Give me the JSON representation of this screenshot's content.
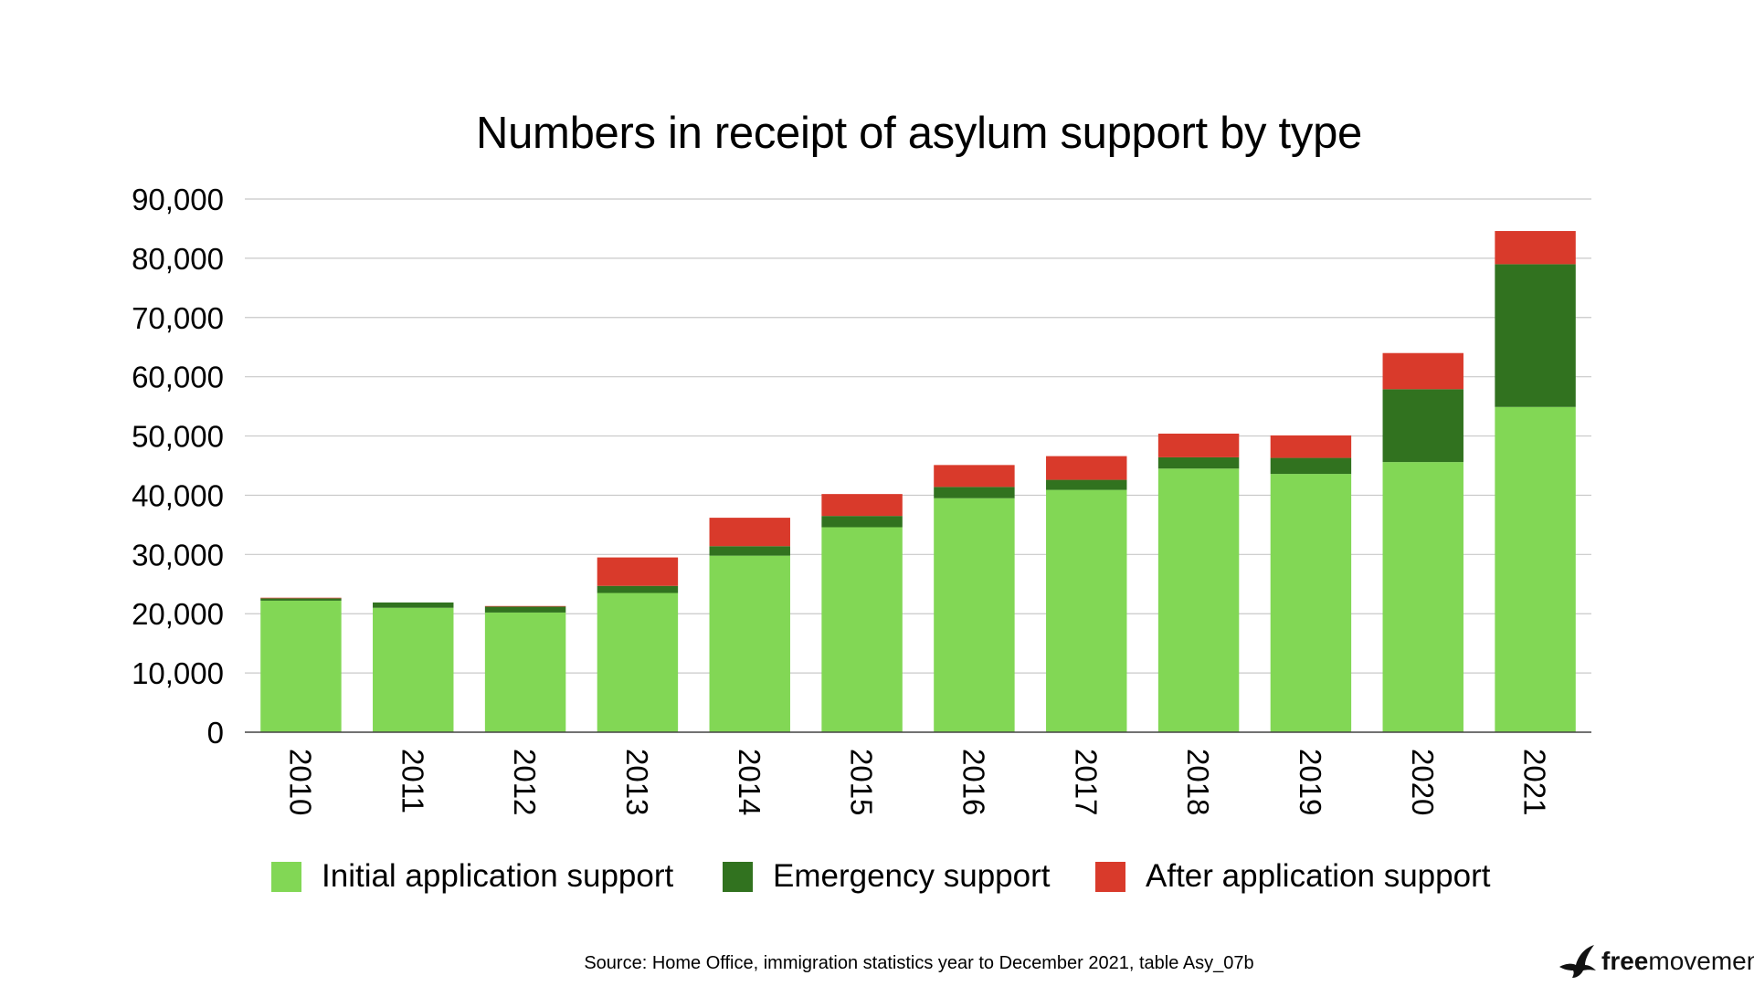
{
  "chart_data": {
    "type": "bar",
    "stacked": true,
    "title": "Numbers in receipt of asylum support by type",
    "xlabel": "",
    "ylabel": "",
    "categories": [
      "2010",
      "2011",
      "2012",
      "2013",
      "2014",
      "2015",
      "2016",
      "2017",
      "2018",
      "2019",
      "2020",
      "2021"
    ],
    "series": [
      {
        "name": "Initial application support",
        "color": "#82d755",
        "values": [
          22200,
          21000,
          20200,
          23500,
          29800,
          34600,
          39500,
          40900,
          44500,
          43600,
          45600,
          54900
        ]
      },
      {
        "name": "Emergency support",
        "color": "#31721f",
        "values": [
          400,
          900,
          1000,
          1200,
          1600,
          1900,
          1900,
          1700,
          1900,
          2700,
          12300,
          24100
        ]
      },
      {
        "name": "After application support",
        "color": "#d93a2b",
        "values": [
          100,
          0,
          100,
          4800,
          4800,
          3700,
          3700,
          4000,
          4000,
          3800,
          6100,
          5600
        ]
      }
    ],
    "ylim": [
      0,
      90000
    ],
    "yticks": [
      0,
      10000,
      20000,
      30000,
      40000,
      50000,
      60000,
      70000,
      80000,
      90000
    ],
    "ytick_labels": [
      "0",
      "10,000",
      "20,000",
      "30,000",
      "40,000",
      "50,000",
      "60,000",
      "70,000",
      "80,000",
      "90,000"
    ],
    "grid": true,
    "legend_position": "bottom",
    "source": "Source: Home Office, immigration statistics year to December 2021, table Asy_07b"
  },
  "brand": {
    "bold": "free",
    "regular": "movement",
    "icon": "bird-icon"
  }
}
